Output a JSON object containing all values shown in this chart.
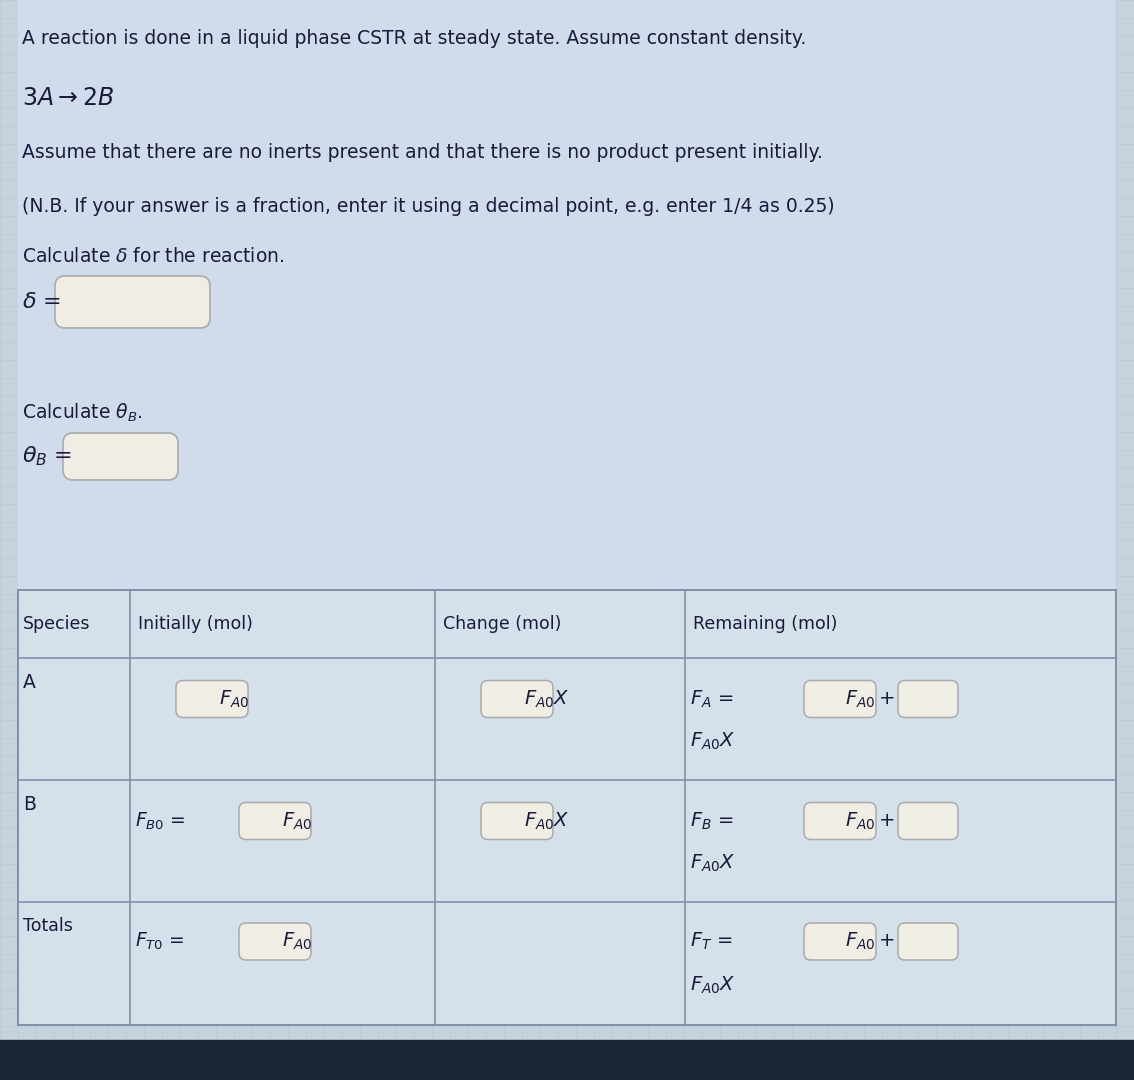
{
  "bg_color": "#c5d3df",
  "bg_top_color": "#d8e4ec",
  "grid_color": "#b0c0d0",
  "text_color": "#1a1a3a",
  "input_box_color": "#f0ede4",
  "input_box_border": "#aaaaaa",
  "table_bg_color": "#d4e0ea",
  "table_line_color": "#8090a8",
  "taskbar_color": "#1c2535",
  "line1": "A reaction is done in a liquid phase CSTR at steady state. Assume constant density.",
  "line2": "$3A \\rightarrow 2B$",
  "line3": "Assume that there are no inerts present and that there is no product present initially.",
  "line4": "(N.B. If your answer is a fraction, enter it using a decimal point, e.g. enter 1/4 as 0.25)",
  "line5": "Calculate $\\delta$ for the reaction.",
  "line6": "Calculate $\\theta_B$.",
  "col_headers": [
    "Species",
    "Initially (mol)",
    "Change (mol)",
    "Remaining (mol)"
  ],
  "row_labels": [
    "A",
    "B",
    "Totals"
  ]
}
